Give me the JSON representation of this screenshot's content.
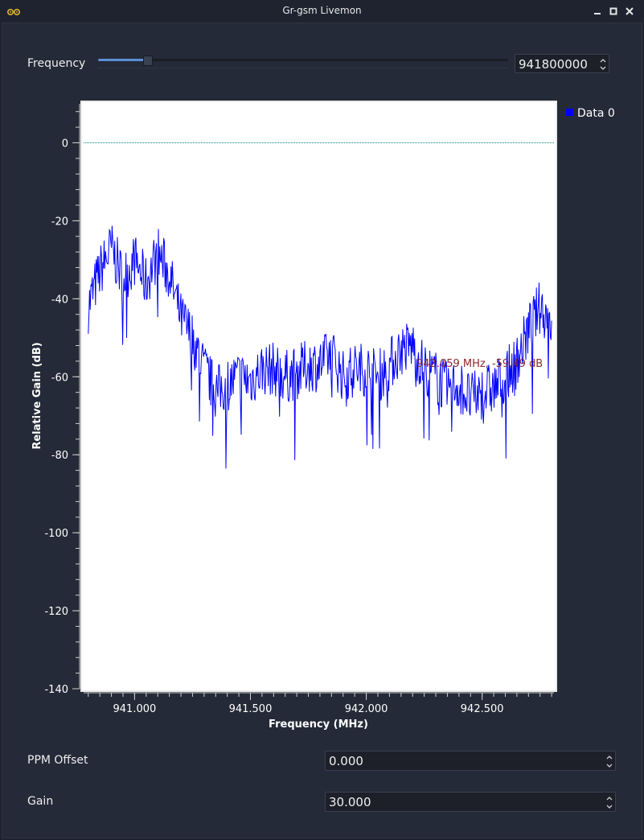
{
  "window": {
    "title": "Gr-gsm Livemon"
  },
  "controls": {
    "frequency_label": "Frequency",
    "frequency_value": "941800000",
    "frequency_slider_fraction": 0.12,
    "ppm_label": "PPM Offset",
    "ppm_value": "0.000",
    "gain_label": "Gain",
    "gain_value": "30.000"
  },
  "colors": {
    "background": "#242a37",
    "trace": "#0000ff",
    "marker_line": "#008080",
    "annotation": "#8b2a2a"
  },
  "chart_data": {
    "type": "line",
    "xlabel": "Frequency (MHz)",
    "ylabel": "Relative Gain (dB)",
    "xlim": [
      940.78,
      942.81
    ],
    "ylim": [
      -140,
      10
    ],
    "xticks": [
      "941.000",
      "941.500",
      "942.000",
      "942.500"
    ],
    "xtick_values": [
      941.0,
      941.5,
      942.0,
      942.5
    ],
    "yticks": [
      "0",
      "-20",
      "-40",
      "-60",
      "-80",
      "-100",
      "-120",
      "-140"
    ],
    "ytick_values": [
      0,
      -20,
      -40,
      -60,
      -80,
      -100,
      -120,
      -140
    ],
    "legend": [
      "Data 0"
    ],
    "legend_position": "right",
    "reference_line_y": 0,
    "annotation": "942.059 MHz, -59.49 dB",
    "series": [
      {
        "name": "Data 0",
        "x": [
          940.8,
          940.85,
          940.9,
          940.95,
          941.0,
          941.05,
          941.1,
          941.15,
          941.2,
          941.25,
          941.3,
          941.35,
          941.4,
          941.45,
          941.5,
          941.55,
          941.6,
          941.65,
          941.7,
          941.75,
          941.8,
          941.85,
          941.9,
          941.95,
          942.0,
          942.05,
          942.1,
          942.15,
          942.2,
          942.25,
          942.3,
          942.35,
          942.4,
          942.45,
          942.5,
          942.55,
          942.6,
          942.65,
          942.7,
          942.75,
          942.8
        ],
        "y": [
          -42,
          -33,
          -27,
          -35,
          -30,
          -36,
          -28,
          -34,
          -45,
          -50,
          -58,
          -64,
          -62,
          -60,
          -61,
          -58,
          -58,
          -60,
          -59,
          -57,
          -57,
          -54,
          -60,
          -58,
          -58,
          -60,
          -57,
          -53,
          -52,
          -58,
          -60,
          -63,
          -62,
          -66,
          -64,
          -63,
          -60,
          -56,
          -48,
          -42,
          -46
        ]
      }
    ]
  }
}
